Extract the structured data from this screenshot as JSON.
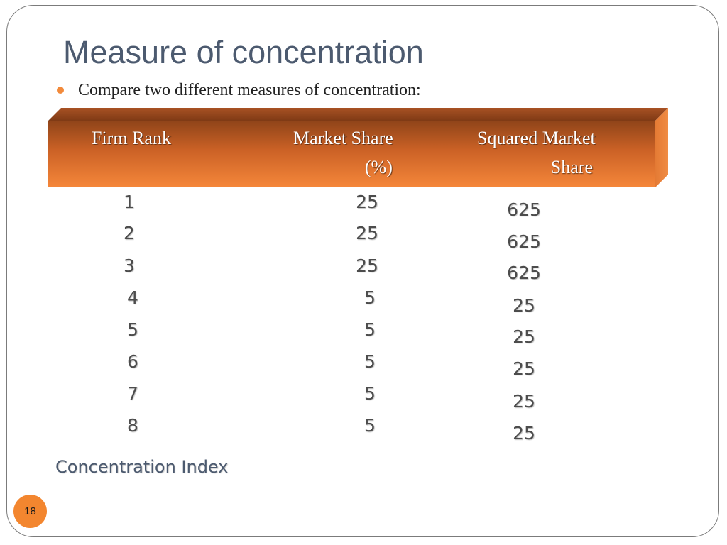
{
  "slide": {
    "title": "Measure of concentration",
    "bullet": "Compare two different measures of concentration:",
    "footer_label": "Concentration Index",
    "page_number": "18"
  },
  "table": {
    "header_color": "#e8742c",
    "headers": {
      "rank": "Firm Rank",
      "share_line1": "Market Share",
      "share_line2": "(%)",
      "squared_line1": "Squared Market",
      "squared_line2": "Share"
    },
    "rows": [
      {
        "rank": "1",
        "share": "25",
        "squared": "625"
      },
      {
        "rank": "2",
        "share": "25",
        "squared": "625"
      },
      {
        "rank": "3",
        "share": "25",
        "squared": "625"
      },
      {
        "rank": "4",
        "share": "5",
        "squared": "25"
      },
      {
        "rank": "5",
        "share": "5",
        "squared": "25"
      },
      {
        "rank": "6",
        "share": "5",
        "squared": "25"
      },
      {
        "rank": "7",
        "share": "5",
        "squared": "25"
      },
      {
        "rank": "8",
        "share": "5",
        "squared": "25"
      }
    ]
  }
}
